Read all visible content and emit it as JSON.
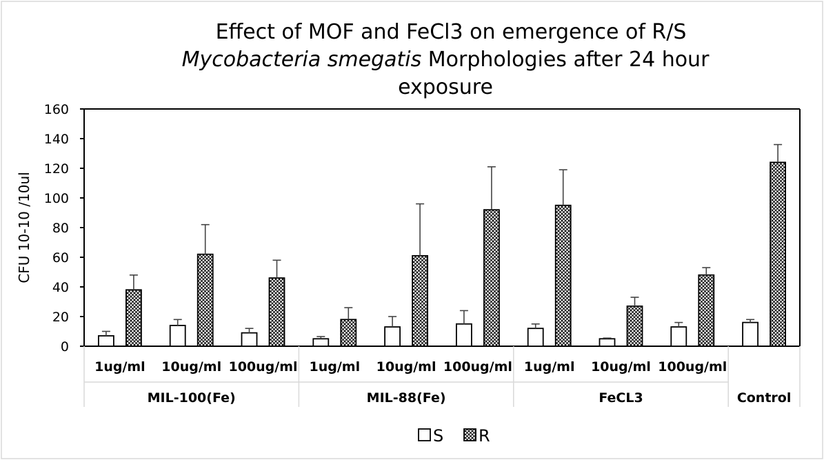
{
  "chart_data": {
    "type": "bar",
    "title_line1": "Effect of MOF and FeCl3 on emergence of R/S",
    "title_line2_italic": "Mycobacteria smegatis",
    "title_line2_rest": " Morphologies after 24 hour",
    "title_line3": "exposure",
    "ylabel": "CFU 10-10 /10ul",
    "xlabel": "",
    "ylim": [
      0,
      160
    ],
    "yticks": [
      0,
      20,
      40,
      60,
      80,
      100,
      120,
      140,
      160
    ],
    "grid": false,
    "legend_position": "bottom",
    "groups": [
      {
        "label": "MIL-100(Fe)",
        "categories": [
          "1ug/ml",
          "10ug/ml",
          "100ug/ml"
        ]
      },
      {
        "label": "MIL-88(Fe)",
        "categories": [
          "1ug/ml",
          "10ug/ml",
          "100ug/ml"
        ]
      },
      {
        "label": "FeCL3",
        "categories": [
          "1ug/ml",
          "10ug/ml",
          "100ug/ml"
        ]
      },
      {
        "label": "Control",
        "categories": [
          ""
        ]
      }
    ],
    "series": [
      {
        "name": "S",
        "pattern": "white",
        "values": [
          7,
          14,
          9,
          5,
          13,
          15,
          12,
          5,
          13,
          16
        ],
        "errors": [
          3,
          4,
          3,
          1.5,
          7,
          9,
          3,
          0.5,
          3,
          2
        ]
      },
      {
        "name": "R",
        "pattern": "crosshatch",
        "values": [
          38,
          62,
          46,
          18,
          61,
          92,
          95,
          27,
          48,
          124
        ],
        "errors": [
          10,
          20,
          12,
          8,
          35,
          29,
          24,
          6,
          5,
          12
        ]
      }
    ]
  }
}
